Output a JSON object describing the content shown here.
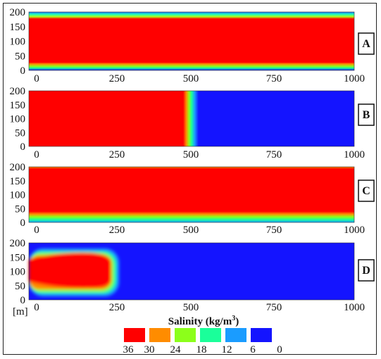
{
  "chart_data": [
    {
      "type": "heatmap",
      "panel_label": "A",
      "x_ticks": [
        "0",
        "250",
        "500",
        "750",
        "1000"
      ],
      "y_ticks": [
        "200",
        "150",
        "100",
        "50",
        "0"
      ],
      "xlim": [
        0,
        1000
      ],
      "ylim": [
        0,
        200
      ],
      "field": "salt core spanning full length, fresh edges at top and bottom",
      "bands": [
        [
          0,
          10,
          18
        ],
        [
          10,
          25,
          30
        ],
        [
          25,
          175,
          36
        ],
        [
          175,
          190,
          30
        ],
        [
          190,
          200,
          12
        ]
      ]
    },
    {
      "type": "heatmap",
      "panel_label": "B",
      "x_ticks": [
        "0",
        "250",
        "500",
        "750",
        "1000"
      ],
      "y_ticks": [
        "200",
        "150",
        "100",
        "50",
        "0"
      ],
      "xlim": [
        0,
        1000
      ],
      "ylim": [
        0,
        200
      ],
      "salt_front_x": 490,
      "transition_width": 50
    },
    {
      "type": "heatmap",
      "panel_label": "C",
      "x_ticks": [
        "0",
        "250",
        "500",
        "750",
        "1000"
      ],
      "y_ticks": [
        "200",
        "150",
        "100",
        "50",
        "0"
      ],
      "xlim": [
        0,
        1000
      ],
      "ylim": [
        0,
        200
      ],
      "bands": [
        [
          0,
          15,
          18
        ],
        [
          15,
          30,
          30
        ],
        [
          30,
          190,
          36
        ],
        [
          190,
          200,
          30
        ]
      ]
    },
    {
      "type": "heatmap",
      "panel_label": "D",
      "x_ticks": [
        "0",
        "250",
        "500",
        "750",
        "1000"
      ],
      "y_ticks": [
        "200",
        "150",
        "100",
        "50",
        "0"
      ],
      "y_unit": "[m]",
      "xlim": [
        0,
        1000
      ],
      "ylim": [
        0,
        200
      ],
      "salt_body": {
        "x_end": 270,
        "y_low": 55,
        "y_high": 165
      }
    }
  ],
  "legend": {
    "title": "Salinity (kg/m",
    "title_sup": "3",
    "title_end": ")",
    "tick_labels": [
      "36",
      "30",
      "24",
      "18",
      "12",
      "6",
      "0"
    ],
    "colors": [
      "#ff0000",
      "#ff8c00",
      "#8cff1a",
      "#1aff9a",
      "#1a9cff",
      "#1414ff"
    ]
  },
  "colors": {
    "salt": "#ff0000",
    "fresh": "#1414ff"
  }
}
